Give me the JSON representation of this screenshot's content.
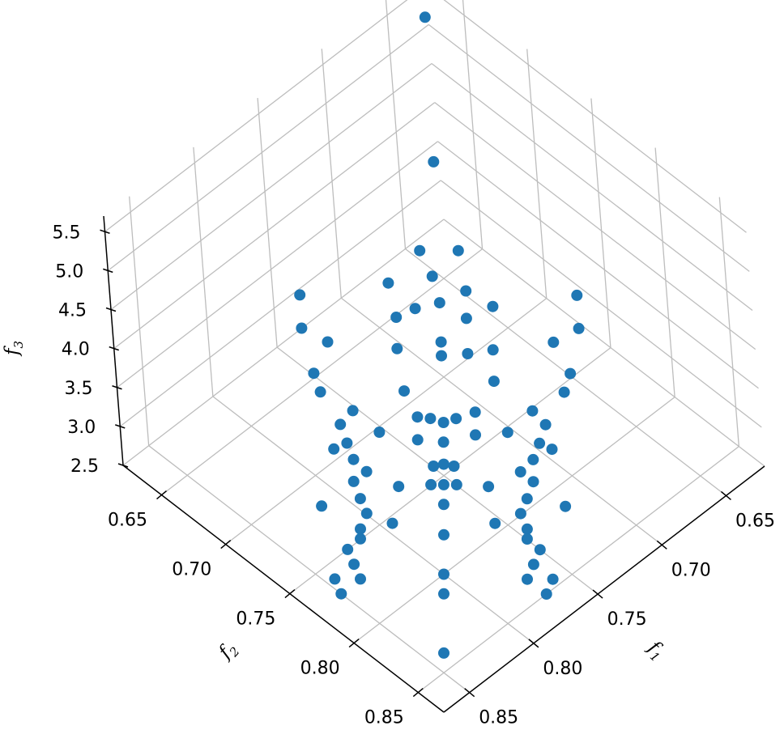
{
  "chart_data": {
    "type": "scatter",
    "projection": "3d",
    "title": "",
    "marker_color": "#1f77b4",
    "grid": true,
    "axes": {
      "x": {
        "label": "f1",
        "label_main": "f",
        "label_sub": "1",
        "range": [
          0.62,
          0.87
        ],
        "ticks": [
          "0.65",
          "0.70",
          "0.75",
          "0.80",
          "0.85"
        ],
        "tick_values": [
          0.65,
          0.7,
          0.75,
          0.8,
          0.85
        ]
      },
      "y": {
        "label": "f2",
        "label_main": "f",
        "label_sub": "2",
        "range": [
          0.62,
          0.87
        ],
        "ticks": [
          "0.65",
          "0.70",
          "0.75",
          "0.80",
          "0.85"
        ],
        "tick_values": [
          0.65,
          0.7,
          0.75,
          0.8,
          0.85
        ]
      },
      "z": {
        "label": "f3",
        "label_main": "f",
        "label_sub": "3",
        "range": [
          2.5,
          5.7
        ],
        "ticks": [
          "2.5",
          "3.0",
          "3.5",
          "4.0",
          "4.5",
          "5.0",
          "5.5"
        ],
        "tick_values": [
          2.5,
          3.0,
          3.5,
          4.0,
          4.5,
          5.0,
          5.5
        ]
      }
    },
    "points": [
      [
        0.64,
        0.64,
        5.6
      ],
      [
        0.658,
        0.658,
        4.2
      ],
      [
        0.685,
        0.68,
        3.35
      ],
      [
        0.69,
        0.69,
        3.2
      ],
      [
        0.7,
        0.7,
        2.95
      ],
      [
        0.705,
        0.705,
        2.9
      ],
      [
        0.725,
        0.725,
        2.55
      ],
      [
        0.735,
        0.735,
        2.55
      ],
      [
        0.745,
        0.745,
        2.52
      ],
      [
        0.755,
        0.755,
        2.51
      ],
      [
        0.765,
        0.765,
        2.51
      ],
      [
        0.78,
        0.78,
        2.5
      ],
      [
        0.8,
        0.8,
        2.5
      ],
      [
        0.81,
        0.81,
        2.5
      ],
      [
        0.84,
        0.84,
        2.5
      ],
      [
        0.72,
        0.73,
        2.6
      ],
      [
        0.73,
        0.72,
        2.6
      ],
      [
        0.742,
        0.75,
        2.52
      ],
      [
        0.75,
        0.742,
        2.52
      ],
      [
        0.76,
        0.75,
        2.51
      ],
      [
        0.75,
        0.76,
        2.51
      ],
      [
        0.748,
        0.64,
        3.4
      ],
      [
        0.753,
        0.645,
        3.1
      ],
      [
        0.748,
        0.66,
        3.05
      ],
      [
        0.76,
        0.66,
        2.8
      ],
      [
        0.765,
        0.67,
        2.75
      ],
      [
        0.76,
        0.69,
        2.7
      ],
      [
        0.77,
        0.69,
        2.65
      ],
      [
        0.775,
        0.7,
        2.6
      ],
      [
        0.78,
        0.71,
        2.58
      ],
      [
        0.78,
        0.72,
        2.55
      ],
      [
        0.79,
        0.72,
        2.55
      ],
      [
        0.795,
        0.73,
        2.52
      ],
      [
        0.8,
        0.74,
        2.52
      ],
      [
        0.81,
        0.745,
        2.51
      ],
      [
        0.815,
        0.75,
        2.51
      ],
      [
        0.825,
        0.75,
        2.5
      ],
      [
        0.83,
        0.76,
        2.5
      ],
      [
        0.845,
        0.76,
        2.5
      ],
      [
        0.85,
        0.77,
        2.5
      ],
      [
        0.775,
        0.74,
        2.55
      ],
      [
        0.785,
        0.7,
        2.65
      ],
      [
        0.815,
        0.72,
        2.55
      ],
      [
        0.835,
        0.77,
        2.5
      ],
      [
        0.795,
        0.755,
        2.52
      ],
      [
        0.64,
        0.748,
        3.4
      ],
      [
        0.645,
        0.753,
        3.1
      ],
      [
        0.66,
        0.748,
        3.05
      ],
      [
        0.66,
        0.76,
        2.8
      ],
      [
        0.67,
        0.765,
        2.75
      ],
      [
        0.69,
        0.76,
        2.7
      ],
      [
        0.69,
        0.77,
        2.65
      ],
      [
        0.7,
        0.775,
        2.6
      ],
      [
        0.71,
        0.78,
        2.58
      ],
      [
        0.72,
        0.78,
        2.55
      ],
      [
        0.72,
        0.79,
        2.55
      ],
      [
        0.73,
        0.795,
        2.52
      ],
      [
        0.74,
        0.8,
        2.52
      ],
      [
        0.745,
        0.81,
        2.51
      ],
      [
        0.75,
        0.815,
        2.51
      ],
      [
        0.75,
        0.825,
        2.5
      ],
      [
        0.76,
        0.83,
        2.5
      ],
      [
        0.76,
        0.845,
        2.5
      ],
      [
        0.77,
        0.85,
        2.5
      ],
      [
        0.74,
        0.775,
        2.55
      ],
      [
        0.7,
        0.785,
        2.65
      ],
      [
        0.72,
        0.815,
        2.55
      ],
      [
        0.77,
        0.835,
        2.5
      ],
      [
        0.755,
        0.795,
        2.52
      ],
      [
        0.7,
        0.66,
        3.2
      ],
      [
        0.68,
        0.7,
        3.0
      ],
      [
        0.705,
        0.67,
        2.95
      ],
      [
        0.68,
        0.72,
        2.85
      ],
      [
        0.66,
        0.7,
        2.9
      ],
      [
        0.715,
        0.68,
        2.8
      ],
      [
        0.69,
        0.71,
        2.8
      ],
      [
        0.73,
        0.7,
        2.7
      ],
      [
        0.69,
        0.73,
        2.7
      ],
      [
        0.735,
        0.715,
        2.62
      ],
      [
        0.71,
        0.735,
        2.62
      ],
      [
        0.72,
        0.745,
        2.58
      ],
      [
        0.745,
        0.725,
        2.58
      ],
      [
        0.705,
        0.755,
        2.55
      ],
      [
        0.755,
        0.705,
        2.55
      ],
      [
        0.67,
        0.69,
        3.1
      ],
      [
        0.695,
        0.675,
        3.0
      ],
      [
        0.66,
        0.675,
        3.3
      ],
      [
        0.675,
        0.66,
        3.3
      ]
    ]
  }
}
